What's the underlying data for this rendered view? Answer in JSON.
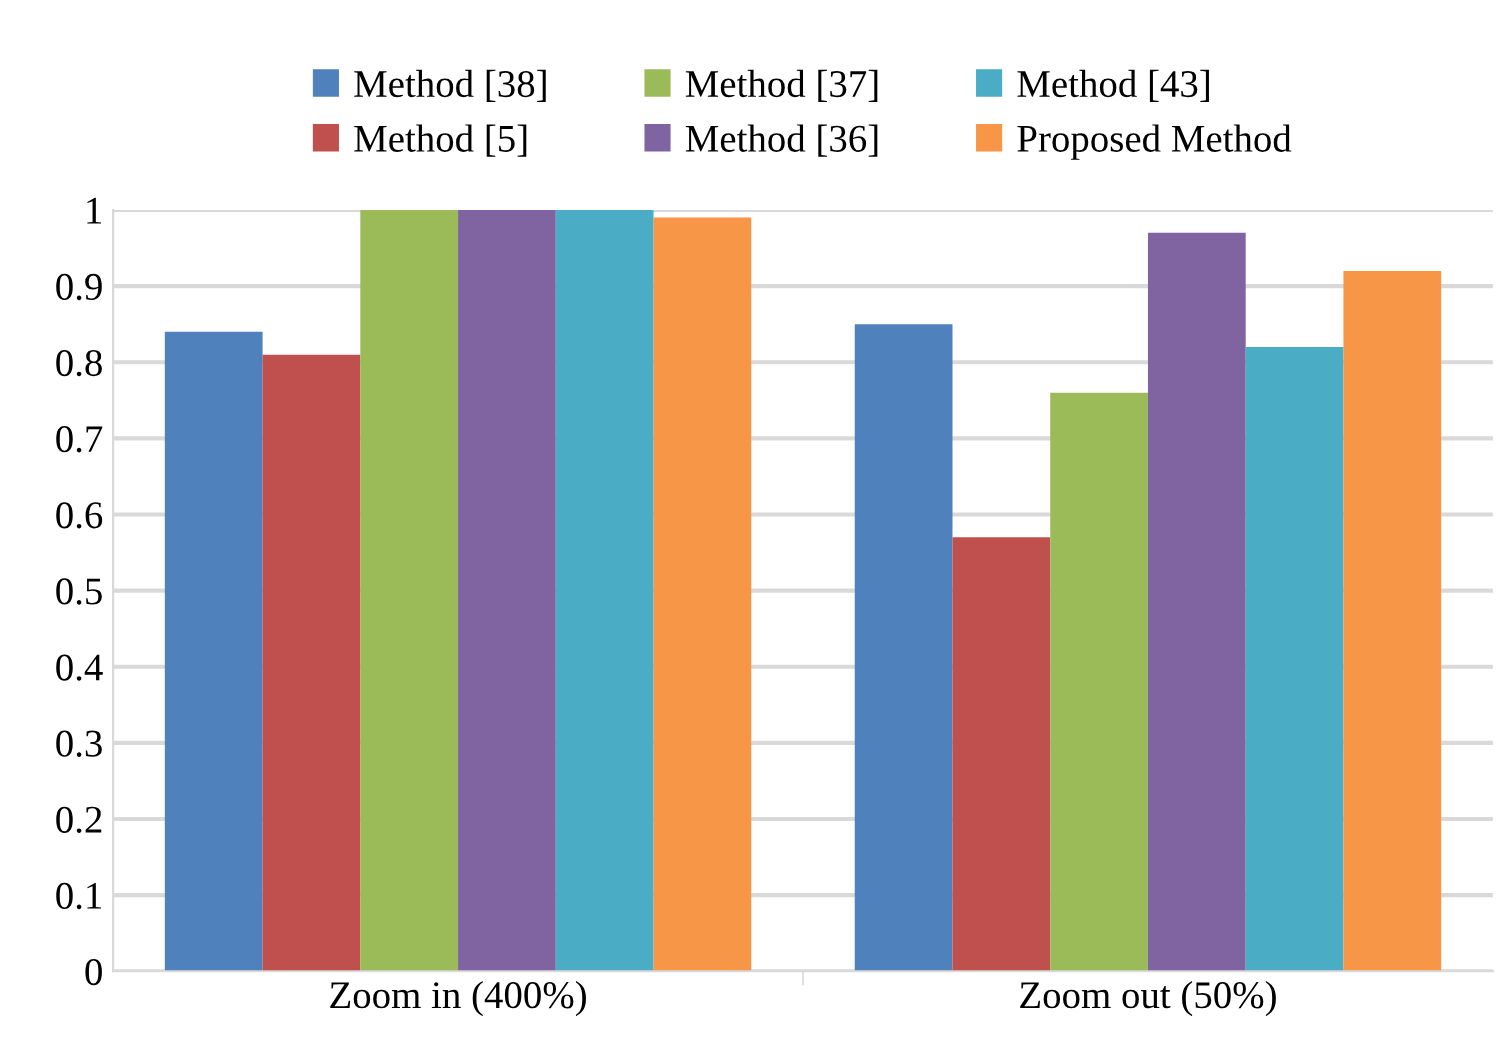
{
  "chart_data": {
    "type": "bar",
    "categories": [
      "Zoom in (400%)",
      "Zoom out (50%)"
    ],
    "series": [
      {
        "name": "Method [38]",
        "color": "#4f81bd",
        "values": [
          0.84,
          0.85
        ]
      },
      {
        "name": "Method [5]",
        "color": "#c0504d",
        "values": [
          0.81,
          0.57
        ]
      },
      {
        "name": "Method [37]",
        "color": "#9bbb59",
        "values": [
          1,
          0.76
        ]
      },
      {
        "name": "Method [36]",
        "color": "#8064a2",
        "values": [
          1,
          0.97
        ]
      },
      {
        "name": "Method [43]",
        "color": "#4bacc6",
        "values": [
          1,
          0.82
        ]
      },
      {
        "name": "Proposed Method",
        "color": "#f79646",
        "values": [
          0.99,
          0.92
        ]
      }
    ],
    "ylim": [
      0,
      1
    ],
    "yticks": [
      0,
      0.1,
      0.2,
      0.3,
      0.4,
      0.5,
      0.6,
      0.7,
      0.8,
      0.9,
      1
    ],
    "grid": "y",
    "legend": "top"
  }
}
